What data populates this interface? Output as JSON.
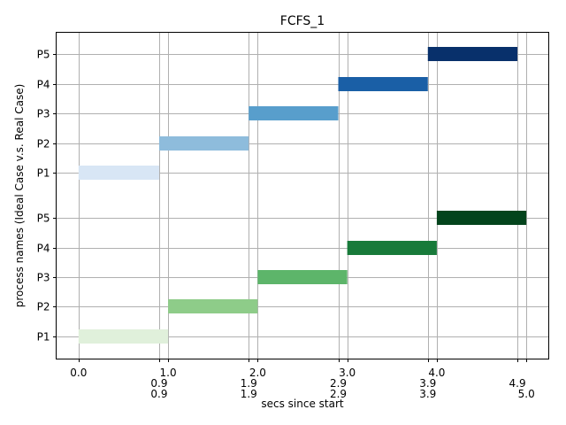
{
  "chart_data": {
    "type": "gantt",
    "title": "FCFS_1",
    "xlabel": "secs since start",
    "ylabel": "process names (Ideal Case v.s. Real Case)",
    "xlim": [
      -0.25,
      5.25
    ],
    "grid": true,
    "x_major_ticks": [
      0.0,
      1.0,
      2.0,
      3.0,
      4.0
    ],
    "x_major_tick_labels": [
      "0.0",
      "1.0",
      "2.0",
      "3.0",
      "4.0"
    ],
    "x_minor_ticks": [
      0.9,
      1.9,
      2.9,
      3.9,
      4.9
    ],
    "x_minor_tick_labels": [
      "0.9",
      "1.9",
      "2.9",
      "3.9",
      "4.9"
    ],
    "x_minor_ticks_2": [
      0.9,
      1.9,
      2.9,
      3.9,
      5.0
    ],
    "x_minor_tick_labels_2": [
      "0.9",
      "1.9",
      "2.9",
      "3.9",
      "5.0"
    ],
    "y_tick_labels": [
      "P1",
      "P2",
      "P3",
      "P4",
      "P5",
      "P1",
      "P2",
      "P3",
      "P4",
      "P5"
    ],
    "groups": [
      {
        "bars": [
          {
            "process": "P1",
            "start": 0.0,
            "end": 1.0,
            "color": "#e0f0db"
          },
          {
            "process": "P2",
            "start": 1.0,
            "end": 2.0,
            "color": "#8ecc89"
          },
          {
            "process": "P3",
            "start": 2.0,
            "end": 3.0,
            "color": "#5db56a"
          },
          {
            "process": "P4",
            "start": 3.0,
            "end": 4.0,
            "color": "#187a3a"
          },
          {
            "process": "P5",
            "start": 4.0,
            "end": 5.0,
            "color": "#03441c"
          }
        ]
      },
      {
        "bars": [
          {
            "process": "P1",
            "start": 0.0,
            "end": 0.9,
            "color": "#d8e6f5"
          },
          {
            "process": "P2",
            "start": 0.9,
            "end": 1.9,
            "color": "#8ebcdc"
          },
          {
            "process": "P3",
            "start": 1.9,
            "end": 2.9,
            "color": "#589ecc"
          },
          {
            "process": "P4",
            "start": 2.9,
            "end": 3.9,
            "color": "#1a5fa6"
          },
          {
            "process": "P5",
            "start": 3.9,
            "end": 4.9,
            "color": "#08306b"
          }
        ]
      }
    ]
  }
}
